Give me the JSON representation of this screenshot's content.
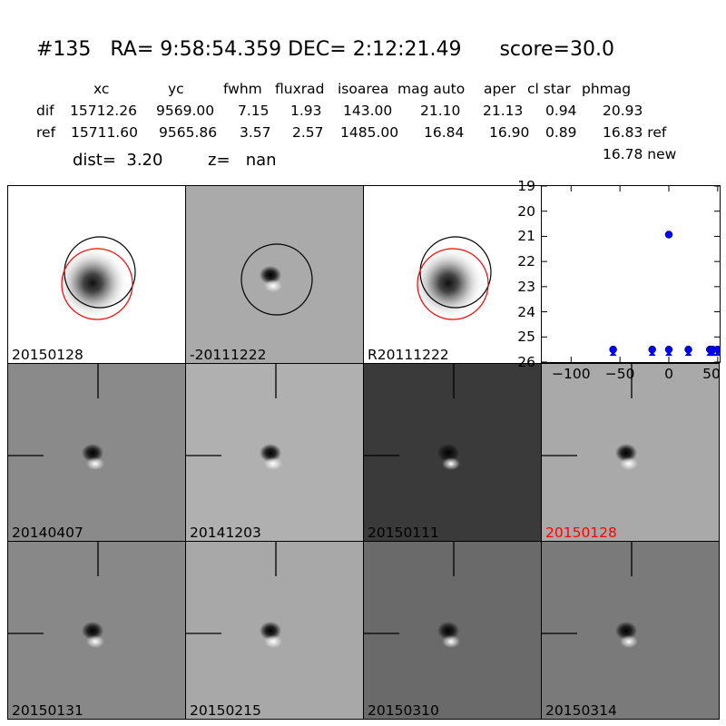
{
  "header": {
    "title": "#135   RA= 9:58:54.359 DEC= 2:12:21.49      score=30.0",
    "columns": [
      "xc",
      "yc",
      "fwhm",
      "fluxrad",
      "isoarea",
      "mag auto",
      "aper",
      "cl star",
      "phmag"
    ],
    "rows": [
      {
        "label": "dif",
        "values": [
          "15712.26",
          "9569.00",
          "7.15",
          "1.93",
          "143.00",
          "21.10",
          "21.13",
          "0.94",
          "20.93"
        ]
      },
      {
        "label": "ref",
        "values": [
          "15711.60",
          "9565.86",
          "3.57",
          "2.57",
          "1485.00",
          "16.84",
          "16.90",
          "0.89",
          "16.83 ref"
        ]
      }
    ],
    "new_mag": "16.78 new",
    "dist": "dist=  3.20",
    "z": "z=   nan"
  },
  "panels": [
    {
      "label": "20150128",
      "bg": "#ffffff",
      "type": "stamp-ref"
    },
    {
      "label": "-20111222",
      "bg": "#aaaaaa",
      "type": "stamp-diff"
    },
    {
      "label": "R20111222",
      "bg": "#ffffff",
      "type": "stamp-ref"
    },
    {
      "label": "20140407",
      "bg": "#8a8a8a",
      "type": "epoch"
    },
    {
      "label": "20141203",
      "bg": "#b0b0b0",
      "type": "epoch"
    },
    {
      "label": "20150111",
      "bg": "#3a3a3a",
      "type": "epoch"
    },
    {
      "label": "20150128",
      "bg": "#a9a9a9",
      "type": "epoch",
      "highlight": true
    },
    {
      "label": "20150131",
      "bg": "#888888",
      "type": "epoch"
    },
    {
      "label": "20150215",
      "bg": "#a8a8a8",
      "type": "epoch"
    },
    {
      "label": "20150310",
      "bg": "#6a6a6a",
      "type": "epoch"
    },
    {
      "label": "20150314",
      "bg": "#7a7a7a",
      "type": "epoch"
    }
  ],
  "chart_data": {
    "type": "scatter",
    "title": "",
    "xlabel": "",
    "ylabel": "",
    "xlim": [
      -130,
      52
    ],
    "ylim": [
      26,
      19
    ],
    "y_inverted": true,
    "yticks": [
      "19",
      "20",
      "21",
      "22",
      "23",
      "24",
      "25",
      "26"
    ],
    "xticks": [
      "−100",
      "−50",
      "0",
      "50"
    ],
    "series": [
      {
        "marker": "circle",
        "color": "#0000ff",
        "x": [
          0
        ],
        "y": [
          20.93
        ]
      },
      {
        "marker": "triangle",
        "color": "#0000ff",
        "x": [
          -57,
          -17,
          0,
          20,
          42,
          45,
          50
        ],
        "y": [
          25.5,
          25.5,
          25.5,
          25.5,
          25.5,
          25.5,
          25.5
        ]
      }
    ]
  }
}
